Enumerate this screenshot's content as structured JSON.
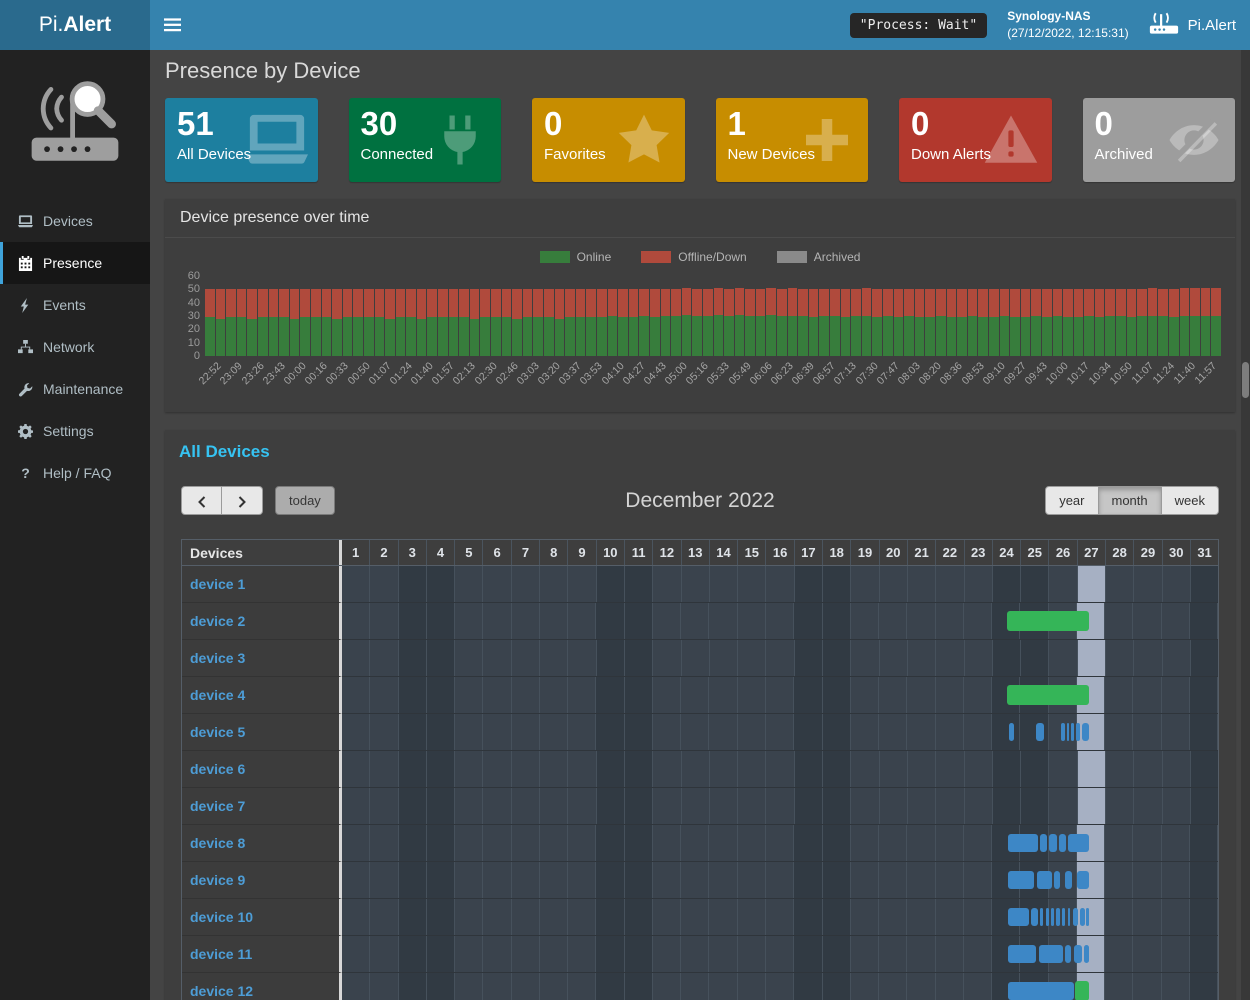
{
  "navbar": {
    "brand_prefix": "Pi.",
    "brand_suffix": "Alert",
    "process_status": "\"Process: Wait\"",
    "host": {
      "name": "Synology-NAS",
      "datetime": "(27/12/2022, 12:15:31)"
    },
    "right_brand": "Pi.Alert"
  },
  "sidebar": {
    "items": [
      {
        "label": "Devices",
        "icon": "laptop-icon",
        "active": false
      },
      {
        "label": "Presence",
        "icon": "calendar-icon",
        "active": true
      },
      {
        "label": "Events",
        "icon": "bolt-icon",
        "active": false
      },
      {
        "label": "Network",
        "icon": "network-icon",
        "active": false
      },
      {
        "label": "Maintenance",
        "icon": "wrench-icon",
        "active": false
      },
      {
        "label": "Settings",
        "icon": "gear-icon",
        "active": false
      },
      {
        "label": "Help / FAQ",
        "icon": "question-icon",
        "active": false
      }
    ]
  },
  "page": {
    "title": "Presence by Device"
  },
  "summary_tiles": [
    {
      "value": "51",
      "label": "All Devices",
      "color": "#1d7f9f",
      "icon": "laptop-icon"
    },
    {
      "value": "30",
      "label": "Connected",
      "color": "#007140",
      "icon": "plug-icon"
    },
    {
      "value": "0",
      "label": "Favorites",
      "color": "#c78d00",
      "icon": "star-icon"
    },
    {
      "value": "1",
      "label": "New Devices",
      "color": "#c78d00",
      "icon": "plus-icon"
    },
    {
      "value": "0",
      "label": "Down Alerts",
      "color": "#b2382d",
      "icon": "warning-icon"
    },
    {
      "value": "0",
      "label": "Archived",
      "color": "#9d9d9d",
      "icon": "eye-slash-icon"
    }
  ],
  "presence_chart": {
    "title": "Device presence over time",
    "legend": [
      {
        "label": "Online",
        "color": "#377d3c"
      },
      {
        "label": "Offline/Down",
        "color": "#b04a3c"
      },
      {
        "label": "Archived",
        "color": "#8a8a8a"
      }
    ]
  },
  "chart_data": {
    "type": "bar",
    "stacked": true,
    "title": "Device presence over time",
    "xlabel": "",
    "ylabel": "",
    "ylim": [
      0,
      60
    ],
    "yticks": [
      0,
      10,
      20,
      30,
      40,
      50,
      60
    ],
    "legend_position": "top",
    "bars_per_label": 2,
    "x_labels": [
      "22:52",
      "23:09",
      "23:26",
      "23:43",
      "00:00",
      "00:16",
      "00:33",
      "00:50",
      "01:07",
      "01:24",
      "01:40",
      "01:57",
      "02:13",
      "02:30",
      "02:46",
      "03:03",
      "03:20",
      "03:37",
      "03:53",
      "04:10",
      "04:27",
      "04:43",
      "05:00",
      "05:16",
      "05:33",
      "05:49",
      "06:06",
      "06:23",
      "06:39",
      "06:57",
      "07:13",
      "07:30",
      "07:47",
      "08:03",
      "08:20",
      "08:36",
      "08:53",
      "09:10",
      "09:27",
      "09:43",
      "10:00",
      "10:17",
      "10:34",
      "10:50",
      "11:07",
      "11:24",
      "11:40",
      "11:57"
    ],
    "series": [
      {
        "name": "Online",
        "color": "#377d3c",
        "values": [
          29,
          28,
          29,
          29,
          28,
          29,
          29,
          29,
          28,
          29,
          29,
          29,
          28,
          29,
          29,
          29,
          29,
          28,
          29,
          29,
          28,
          29,
          29,
          29,
          29,
          28,
          29,
          29,
          29,
          28,
          29,
          29,
          29,
          28,
          29,
          29,
          29,
          29,
          30,
          29,
          29,
          30,
          29,
          30,
          30,
          31,
          30,
          30,
          31,
          30,
          31,
          30,
          30,
          31,
          30,
          30,
          30,
          29,
          30,
          30,
          29,
          30,
          30,
          29,
          30,
          29,
          30,
          29,
          29,
          30,
          29,
          29,
          30,
          29,
          29,
          30,
          29,
          29,
          30,
          29,
          30,
          29,
          29,
          30,
          29,
          30,
          30,
          29,
          30,
          30,
          30,
          29,
          30,
          30,
          30,
          30
        ]
      },
      {
        "name": "Offline/Down",
        "color": "#b04a3c",
        "values": [
          21,
          22,
          21,
          21,
          22,
          21,
          21,
          21,
          22,
          21,
          21,
          21,
          22,
          21,
          21,
          21,
          21,
          22,
          21,
          21,
          22,
          21,
          21,
          21,
          21,
          22,
          21,
          21,
          21,
          22,
          21,
          21,
          21,
          22,
          21,
          21,
          21,
          21,
          20,
          21,
          21,
          20,
          21,
          20,
          20,
          20,
          20,
          20,
          20,
          20,
          20,
          20,
          20,
          20,
          20,
          21,
          20,
          21,
          20,
          20,
          21,
          20,
          21,
          21,
          20,
          21,
          20,
          21,
          21,
          20,
          21,
          21,
          20,
          21,
          21,
          20,
          21,
          21,
          20,
          21,
          20,
          21,
          21,
          20,
          21,
          20,
          20,
          21,
          20,
          21,
          20,
          21,
          21,
          21,
          21,
          21
        ]
      },
      {
        "name": "Archived",
        "color": "#8a8a8a",
        "values": []
      }
    ]
  },
  "calendar": {
    "title": "All Devices",
    "toolbar": {
      "today": "today",
      "month_title": "December 2022",
      "views": [
        {
          "label": "year",
          "active": false
        },
        {
          "label": "month",
          "active": true
        },
        {
          "label": "week",
          "active": false
        }
      ]
    },
    "colors": {
      "online_bar": "#35b558",
      "session_bar": "#3d87c6",
      "today_highlight": "#a6b0c3"
    },
    "table": {
      "devices_header": "Devices",
      "days": [
        1,
        2,
        3,
        4,
        5,
        6,
        7,
        8,
        9,
        10,
        11,
        12,
        13,
        14,
        15,
        16,
        17,
        18,
        19,
        20,
        21,
        22,
        23,
        24,
        25,
        26,
        27,
        28,
        29,
        30,
        31
      ],
      "weekend_days": [
        3,
        4,
        10,
        11,
        17,
        18,
        24,
        25,
        31
      ],
      "today_day": 27,
      "rows": [
        {
          "name": "device 1",
          "bars": []
        },
        {
          "name": "device 2",
          "bars": [
            {
              "start": 23.55,
              "end": 26.45,
              "type": "online"
            }
          ]
        },
        {
          "name": "device 3",
          "bars": []
        },
        {
          "name": "device 4",
          "bars": [
            {
              "start": 23.55,
              "end": 26.45,
              "type": "online"
            }
          ]
        },
        {
          "name": "device 5",
          "bars": [
            {
              "start": 23.6,
              "end": 23.78,
              "type": "session"
            },
            {
              "start": 24.55,
              "end": 24.85,
              "type": "session"
            },
            {
              "start": 25.45,
              "end": 25.58,
              "type": "session"
            },
            {
              "start": 25.65,
              "end": 25.74,
              "type": "session"
            },
            {
              "start": 25.8,
              "end": 25.92,
              "type": "session"
            },
            {
              "start": 25.98,
              "end": 26.12,
              "type": "session"
            },
            {
              "start": 26.18,
              "end": 26.42,
              "type": "session"
            }
          ]
        },
        {
          "name": "device 6",
          "bars": []
        },
        {
          "name": "device 7",
          "bars": []
        },
        {
          "name": "device 8",
          "bars": [
            {
              "start": 23.58,
              "end": 24.62,
              "type": "session"
            },
            {
              "start": 24.7,
              "end": 24.95,
              "type": "session"
            },
            {
              "start": 25.02,
              "end": 25.3,
              "type": "session"
            },
            {
              "start": 25.38,
              "end": 25.62,
              "type": "session"
            },
            {
              "start": 25.7,
              "end": 26.45,
              "type": "session"
            }
          ]
        },
        {
          "name": "device 9",
          "bars": [
            {
              "start": 23.58,
              "end": 24.5,
              "type": "session"
            },
            {
              "start": 24.6,
              "end": 25.12,
              "type": "session"
            },
            {
              "start": 25.2,
              "end": 25.42,
              "type": "session"
            },
            {
              "start": 25.6,
              "end": 25.82,
              "type": "session"
            },
            {
              "start": 26.0,
              "end": 26.42,
              "type": "session"
            }
          ]
        },
        {
          "name": "device 10",
          "bars": [
            {
              "start": 23.58,
              "end": 24.3,
              "type": "session"
            },
            {
              "start": 24.4,
              "end": 24.62,
              "type": "session"
            },
            {
              "start": 24.7,
              "end": 24.82,
              "type": "session"
            },
            {
              "start": 24.9,
              "end": 25.02,
              "type": "session"
            },
            {
              "start": 25.1,
              "end": 25.2,
              "type": "session"
            },
            {
              "start": 25.28,
              "end": 25.4,
              "type": "session"
            },
            {
              "start": 25.48,
              "end": 25.6,
              "type": "session"
            },
            {
              "start": 25.68,
              "end": 25.78,
              "type": "session"
            },
            {
              "start": 25.86,
              "end": 26.05,
              "type": "session"
            },
            {
              "start": 26.12,
              "end": 26.28,
              "type": "session"
            },
            {
              "start": 26.34,
              "end": 26.45,
              "type": "session"
            }
          ]
        },
        {
          "name": "device 11",
          "bars": [
            {
              "start": 23.58,
              "end": 24.55,
              "type": "session"
            },
            {
              "start": 24.65,
              "end": 25.5,
              "type": "session"
            },
            {
              "start": 25.58,
              "end": 25.8,
              "type": "session"
            },
            {
              "start": 25.9,
              "end": 26.2,
              "type": "session"
            },
            {
              "start": 26.26,
              "end": 26.45,
              "type": "session"
            }
          ]
        },
        {
          "name": "device 12",
          "bars": [
            {
              "start": 23.58,
              "end": 25.9,
              "type": "session"
            },
            {
              "start": 25.95,
              "end": 26.45,
              "type": "online"
            }
          ]
        }
      ]
    }
  }
}
